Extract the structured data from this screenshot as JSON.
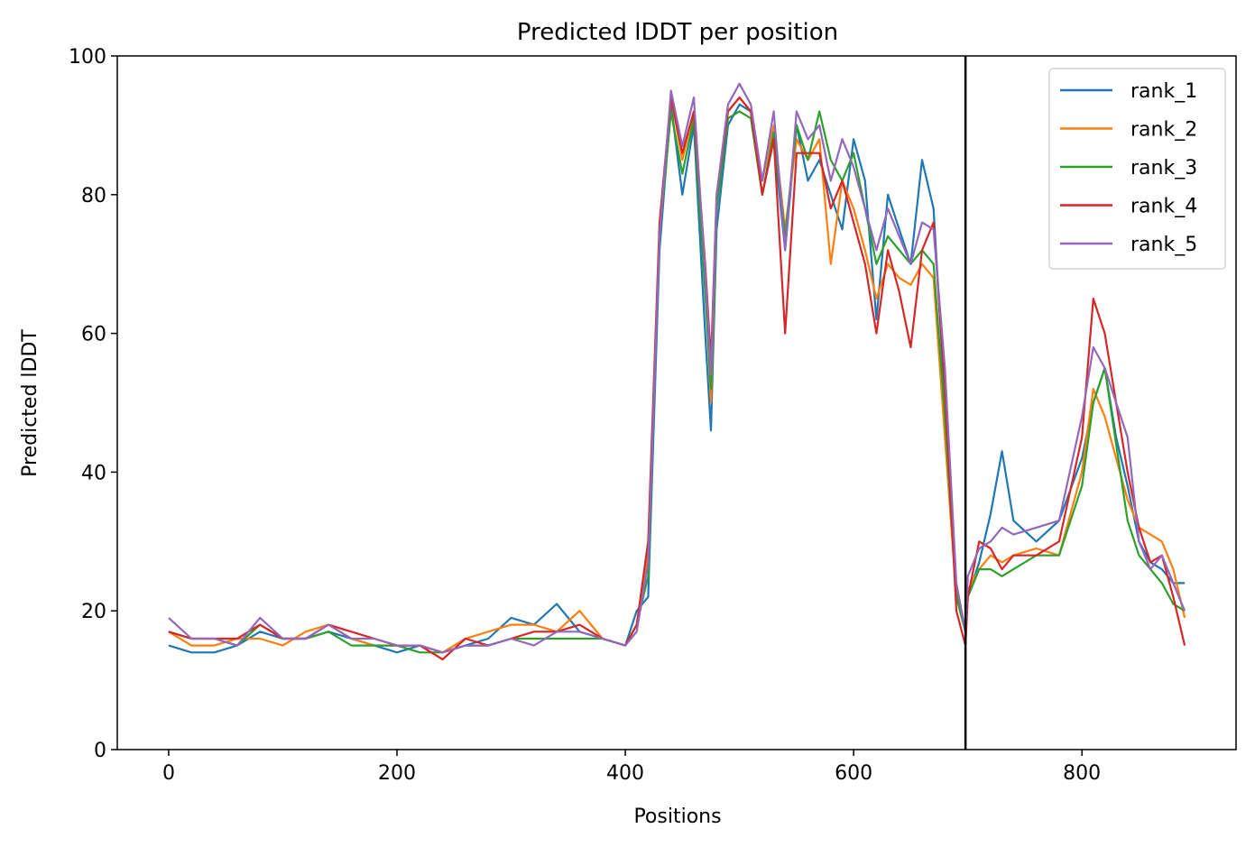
{
  "chart_data": {
    "type": "line",
    "title": "Predicted lDDT per position",
    "xlabel": "Positions",
    "ylabel": "Predicted lDDT",
    "xlim": [
      -45,
      935
    ],
    "ylim": [
      0,
      100
    ],
    "xticks": [
      0,
      200,
      400,
      600,
      800
    ],
    "yticks": [
      0,
      20,
      40,
      60,
      80,
      100
    ],
    "grid": false,
    "legend_position": "upper right",
    "vline_x": 698,
    "x": [
      0,
      20,
      40,
      60,
      80,
      100,
      120,
      140,
      160,
      180,
      200,
      220,
      240,
      260,
      280,
      300,
      320,
      340,
      360,
      380,
      400,
      410,
      420,
      430,
      440,
      450,
      460,
      470,
      475,
      480,
      490,
      500,
      510,
      520,
      530,
      540,
      550,
      560,
      570,
      580,
      590,
      600,
      610,
      620,
      630,
      640,
      650,
      660,
      670,
      680,
      690,
      698,
      700,
      710,
      720,
      730,
      740,
      760,
      780,
      800,
      810,
      820,
      830,
      840,
      850,
      860,
      870,
      880,
      890
    ],
    "series": [
      {
        "name": "rank_1",
        "color": "#1f77b4",
        "values": [
          15,
          14,
          14,
          15,
          17,
          16,
          16,
          17,
          16,
          15,
          14,
          15,
          14,
          15,
          16,
          19,
          18,
          21,
          17,
          16,
          15,
          20,
          22,
          72,
          93,
          80,
          90,
          60,
          46,
          75,
          90,
          93,
          92,
          80,
          88,
          72,
          90,
          82,
          85,
          80,
          75,
          88,
          82,
          62,
          80,
          75,
          70,
          85,
          78,
          50,
          23,
          17,
          22,
          27,
          34,
          43,
          33,
          30,
          33,
          42,
          50,
          55,
          45,
          38,
          30,
          27,
          26,
          24,
          24
        ]
      },
      {
        "name": "rank_2",
        "color": "#ff7f0e",
        "values": [
          17,
          15,
          15,
          16,
          16,
          15,
          17,
          18,
          16,
          15,
          15,
          15,
          14,
          16,
          17,
          18,
          18,
          17,
          20,
          16,
          15,
          18,
          28,
          75,
          94,
          85,
          92,
          68,
          50,
          78,
          92,
          94,
          92,
          82,
          90,
          75,
          88,
          85,
          88,
          70,
          82,
          78,
          72,
          65,
          70,
          68,
          67,
          70,
          68,
          45,
          22,
          17,
          23,
          26,
          28,
          27,
          28,
          29,
          28,
          40,
          52,
          48,
          42,
          36,
          32,
          31,
          30,
          26,
          19
        ]
      },
      {
        "name": "rank_3",
        "color": "#2ca02c",
        "values": [
          17,
          16,
          16,
          15,
          18,
          16,
          16,
          17,
          15,
          15,
          15,
          14,
          14,
          15,
          15,
          16,
          16,
          16,
          16,
          16,
          15,
          18,
          25,
          74,
          92,
          83,
          91,
          66,
          52,
          78,
          91,
          92,
          91,
          80,
          89,
          74,
          90,
          85,
          92,
          85,
          82,
          86,
          78,
          70,
          74,
          72,
          70,
          72,
          70,
          48,
          22,
          17,
          22,
          26,
          26,
          25,
          26,
          28,
          28,
          38,
          50,
          55,
          44,
          33,
          28,
          26,
          24,
          21,
          20
        ]
      },
      {
        "name": "rank_4",
        "color": "#d62728",
        "values": [
          17,
          16,
          16,
          16,
          18,
          16,
          16,
          18,
          17,
          16,
          15,
          15,
          13,
          16,
          15,
          16,
          17,
          17,
          18,
          16,
          15,
          18,
          30,
          76,
          94,
          86,
          92,
          70,
          56,
          80,
          92,
          94,
          92,
          80,
          88,
          60,
          86,
          86,
          86,
          78,
          82,
          76,
          70,
          60,
          72,
          66,
          58,
          72,
          76,
          52,
          20,
          15,
          22,
          30,
          29,
          26,
          28,
          28,
          30,
          45,
          65,
          60,
          50,
          40,
          32,
          27,
          28,
          22,
          15
        ]
      },
      {
        "name": "rank_5",
        "color": "#9467bd",
        "values": [
          19,
          16,
          16,
          15,
          19,
          16,
          16,
          18,
          16,
          16,
          15,
          15,
          14,
          15,
          15,
          16,
          15,
          17,
          17,
          16,
          15,
          17,
          27,
          74,
          95,
          87,
          94,
          69,
          54,
          80,
          93,
          96,
          93,
          82,
          92,
          72,
          92,
          88,
          90,
          82,
          88,
          84,
          78,
          72,
          78,
          74,
          70,
          76,
          75,
          55,
          24,
          17,
          25,
          29,
          30,
          32,
          31,
          32,
          33,
          48,
          58,
          55,
          50,
          45,
          30,
          26,
          28,
          24,
          20
        ]
      }
    ]
  }
}
